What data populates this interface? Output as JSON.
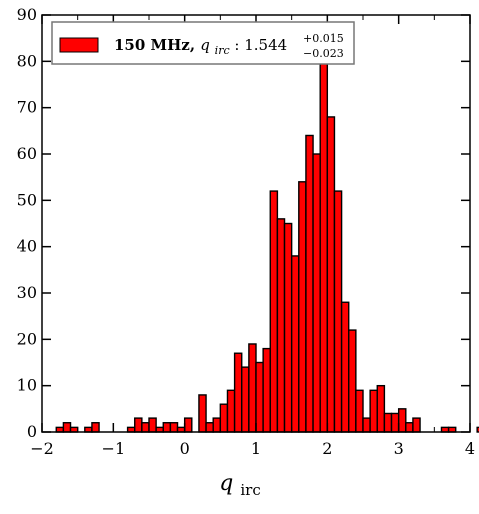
{
  "chart_data": {
    "type": "histogram",
    "title": "",
    "xlabel": "q_irc",
    "ylabel": "",
    "xlim": [
      -2,
      4
    ],
    "ylim": [
      0,
      90
    ],
    "xticks": [
      -2,
      -1,
      0,
      1,
      2,
      3,
      4
    ],
    "xtick_labels": [
      "−2",
      "−1",
      "0",
      "1",
      "2",
      "3",
      "4"
    ],
    "yticks": [
      0,
      10,
      20,
      30,
      40,
      50,
      60,
      70,
      80,
      90
    ],
    "ytick_labels": [
      "0",
      "10",
      "20",
      "30",
      "40",
      "50",
      "60",
      "70",
      "80",
      "90"
    ],
    "grid": false,
    "legend_position": "top-left",
    "bin_width": 0.1,
    "bin_start": -2.0,
    "series": [
      {
        "name": "150 MHz, q_irc : 1.544 +0.015 −0.023",
        "color": "#ff0000",
        "edgecolor": "#000000",
        "counts": [
          0,
          0,
          1,
          2,
          1,
          0,
          1,
          2,
          0,
          0,
          0,
          0,
          1,
          3,
          2,
          3,
          1,
          2,
          2,
          1,
          3,
          0,
          8,
          2,
          3,
          6,
          9,
          17,
          14,
          19,
          15,
          18,
          52,
          46,
          45,
          38,
          54,
          64,
          60,
          80,
          68,
          52,
          28,
          22,
          9,
          3,
          9,
          10,
          4,
          4,
          5,
          2,
          3,
          0,
          0,
          0,
          1,
          1,
          0,
          0,
          0,
          1,
          1,
          0,
          0,
          0,
          0,
          0,
          0,
          0,
          1,
          3
        ]
      }
    ]
  },
  "legend": {
    "label_main": "150 MHz, ",
    "label_var": "q",
    "label_sub": "irc",
    "label_sep": " :  ",
    "label_value": "1.544",
    "label_sup": "+0.015",
    "label_low": "−0.023"
  },
  "axis": {
    "xlabel_main": "q",
    "xlabel_sub": "irc"
  }
}
